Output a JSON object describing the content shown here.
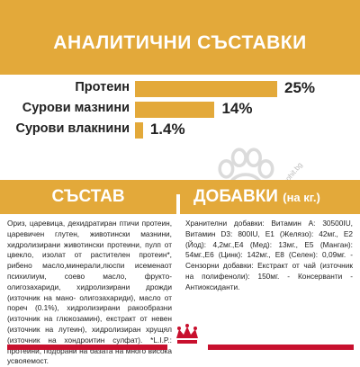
{
  "colors": {
    "accent": "#e3a93a",
    "brand_red": "#c8102e"
  },
  "analytics": {
    "title": "АНАЛИТИЧНИ СЪСТАВКИ",
    "rows": [
      {
        "label": "Протеин",
        "value": "25%",
        "percent": 25
      },
      {
        "label": "Сурови мазнини",
        "value": "14%",
        "percent": 14
      },
      {
        "label": "Сурови влакнини",
        "value": "1.4%",
        "percent": 1.4
      }
    ]
  },
  "composition": {
    "title": "СЪСТАВ",
    "text": "Ориз, царевица, дехидратиран птичи протеин, царевичен глутен, животински мазнини, хидролизирани животински протеини, пулп от цвекло, изолат от растителен протеин*, рибено масло,минерали,люспи исеменаот психилиум, соево масло, фрукто-олигозахариди, хидролизирани дрожди (източник на мано- олигозахариди), масло от пореч (0.1%), хидролизирани ракообразни (източник на глюкозамин), екстракт от невен (източник на лутеин), хидролизиран хрущял (източник на хондроитин сулфат). *L.I.P.: протеини, подбрани на базата на много висока усвояемост."
  },
  "additives": {
    "title": "ДОБАВКИ",
    "unit": "(на кг.)",
    "text": "Хранителни добавки: Витамин А: 30500IU, Витамин D3: 800IU, Е1 (Желязо): 42мг., Е2 (Йод): 4,2мг.,Е4 (Мед): 13мг., Е5 (Манган): 54мг.,Е6 (Цинк): 142мг., Е8 (Селен): 0,09мг. - Сензорни добавки: Екстракт от чай (източник на полифеноли): 150мг. - Консерванти - Антиоксиданти."
  },
  "watermark": "www.zoohit.bg",
  "icons": [
    "paw-print-icon",
    "royal-canin-crown-icon"
  ]
}
